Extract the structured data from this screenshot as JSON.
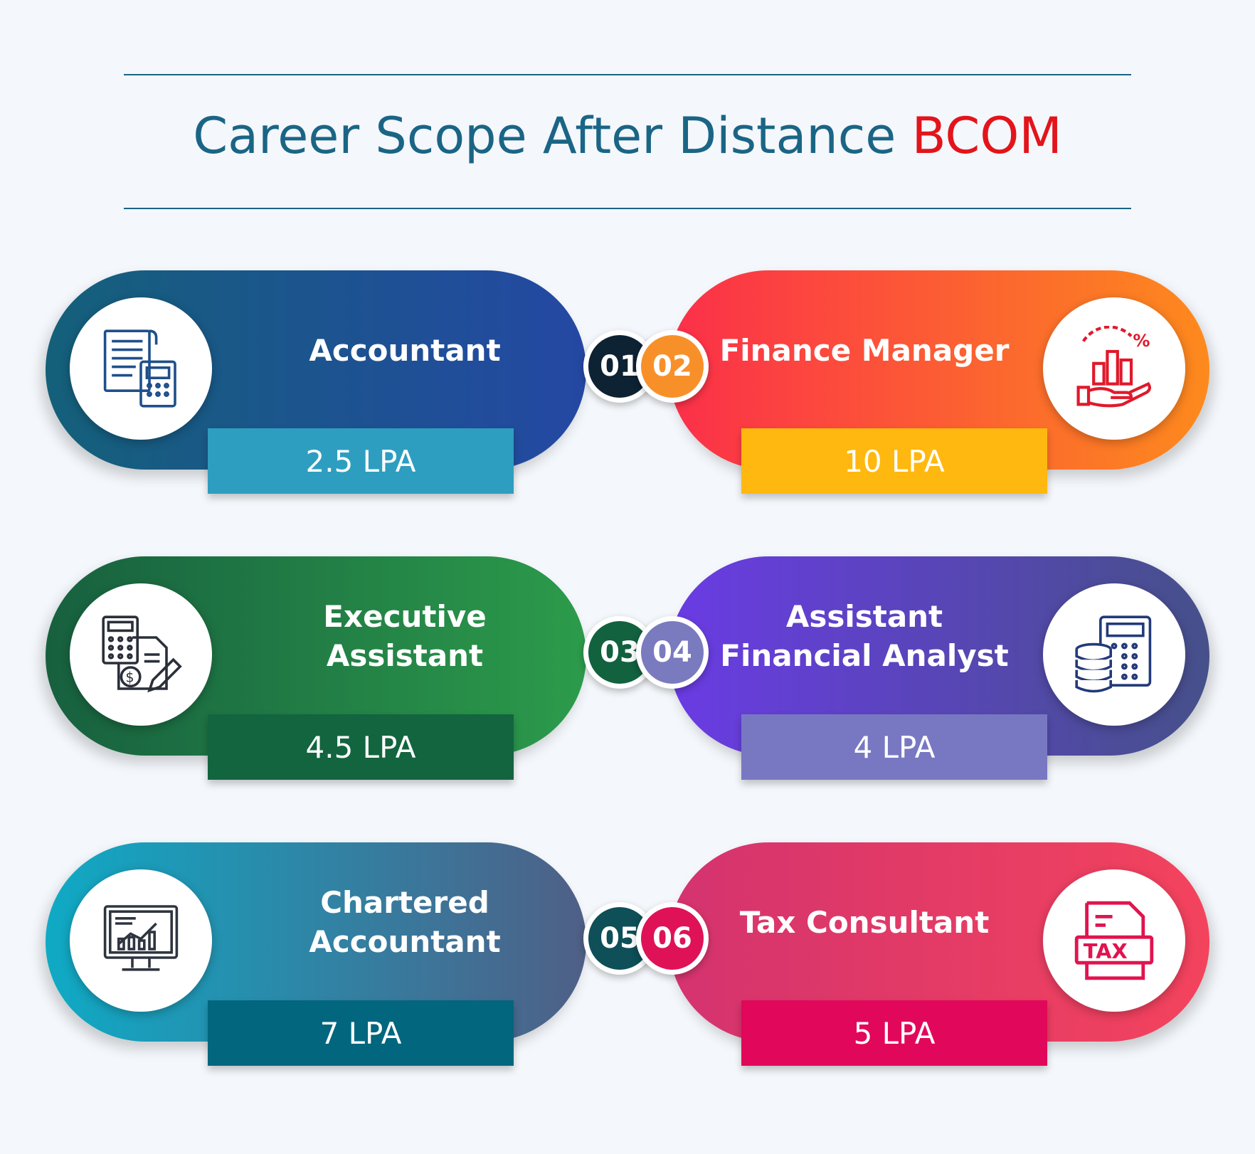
{
  "header": {
    "title_main": "Career Scope After Distance",
    "title_highlight": "BCOM"
  },
  "careers": [
    {
      "number": "01",
      "role": "Accountant",
      "salary": "2.5 LPA",
      "icon": "invoice-calculator-icon",
      "colors": {
        "start": "#14607a",
        "end": "#2448a3",
        "number_bg": "#0d2233",
        "salary_bg": "#2e9ec0"
      }
    },
    {
      "number": "02",
      "role": "Finance Manager",
      "salary": "10 LPA",
      "icon": "hand-chart-percent-icon",
      "colors": {
        "start": "#fb2f4a",
        "end": "#fd8a1d",
        "number_bg": "#f8902a",
        "salary_bg": "#ffb80f"
      }
    },
    {
      "number": "03",
      "role": "Executive Assistant",
      "salary": "4.5 LPA",
      "icon": "calculator-document-dollar-icon",
      "colors": {
        "start": "#17603f",
        "end": "#2c9b4b",
        "number_bg": "#12613f",
        "salary_bg": "#12653f"
      }
    },
    {
      "number": "04",
      "role": "Assistant Financial Analyst",
      "salary": "4 LPA",
      "icon": "coins-calculator-icon",
      "colors": {
        "start": "#6a3be4",
        "end": "#46508a",
        "number_bg": "#7a7abf",
        "salary_bg": "#7878c2"
      }
    },
    {
      "number": "05",
      "role": "Chartered Accountant",
      "salary": "7 LPA",
      "icon": "monitor-chart-icon",
      "colors": {
        "start": "#0faac5",
        "end": "#4f5f86",
        "number_bg": "#0e4f58",
        "salary_bg": "#02667e"
      }
    },
    {
      "number": "06",
      "role": "Tax Consultant",
      "salary": "5 LPA",
      "icon": "tax-document-icon",
      "colors": {
        "start": "#d4336f",
        "end": "#f3435d",
        "number_bg": "#df1258",
        "salary_bg": "#e1085b"
      }
    }
  ]
}
